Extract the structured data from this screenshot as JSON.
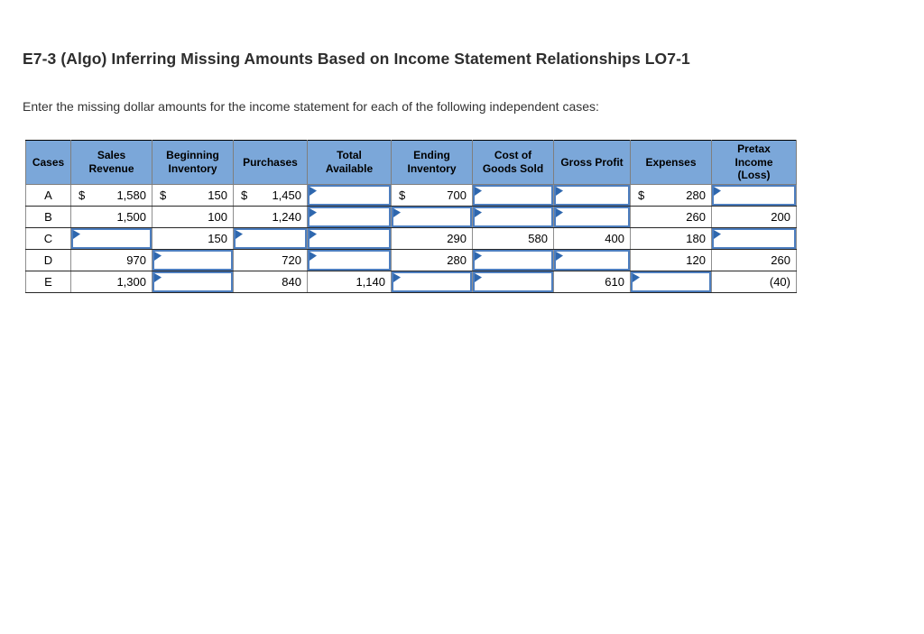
{
  "page": {
    "title": "E7-3 (Algo) Inferring Missing Amounts Based on Income Statement Relationships LO7-1",
    "instruction": "Enter the missing dollar amounts for the income statement for each of the following independent cases:"
  },
  "colors": {
    "header_bg": "#7BA7D9",
    "input_border": "#4D7EBF",
    "flag": "#2E67AE"
  },
  "table": {
    "columns": [
      {
        "key": "cases",
        "label": "Cases"
      },
      {
        "key": "sales-revenue",
        "label": "Sales Revenue"
      },
      {
        "key": "beginning-inventory",
        "label": "Beginning Inventory"
      },
      {
        "key": "purchases",
        "label": "Purchases"
      },
      {
        "key": "total-available",
        "label": "Total Available"
      },
      {
        "key": "ending-inventory",
        "label": "Ending Inventory"
      },
      {
        "key": "cost-of-goods-sold",
        "label": "Cost of Goods Sold"
      },
      {
        "key": "gross-profit",
        "label": "Gross Profit"
      },
      {
        "key": "expenses",
        "label": "Expenses"
      },
      {
        "key": "pretax-income-loss",
        "label": "Pretax Income (Loss)"
      }
    ],
    "rows": [
      {
        "case": "A",
        "cells": [
          {
            "type": "static",
            "prefix": "$",
            "value": "1,580"
          },
          {
            "type": "static",
            "prefix": "$",
            "value": "150"
          },
          {
            "type": "static",
            "prefix": "$",
            "value": "1,450"
          },
          {
            "type": "input",
            "value": ""
          },
          {
            "type": "static",
            "prefix": "$",
            "value": "700"
          },
          {
            "type": "input",
            "value": ""
          },
          {
            "type": "input",
            "value": ""
          },
          {
            "type": "static",
            "prefix": "$",
            "value": "280"
          },
          {
            "type": "input",
            "value": ""
          }
        ]
      },
      {
        "case": "B",
        "cells": [
          {
            "type": "static",
            "prefix": "",
            "value": "1,500"
          },
          {
            "type": "static",
            "prefix": "",
            "value": "100"
          },
          {
            "type": "static",
            "prefix": "",
            "value": "1,240"
          },
          {
            "type": "input",
            "value": ""
          },
          {
            "type": "input",
            "value": ""
          },
          {
            "type": "input",
            "value": ""
          },
          {
            "type": "input",
            "value": ""
          },
          {
            "type": "static",
            "prefix": "",
            "value": "260"
          },
          {
            "type": "static",
            "prefix": "",
            "value": "200"
          }
        ]
      },
      {
        "case": "C",
        "cells": [
          {
            "type": "input",
            "value": ""
          },
          {
            "type": "static",
            "prefix": "",
            "value": "150"
          },
          {
            "type": "input",
            "value": ""
          },
          {
            "type": "input",
            "value": ""
          },
          {
            "type": "static",
            "prefix": "",
            "value": "290"
          },
          {
            "type": "static",
            "prefix": "",
            "value": "580"
          },
          {
            "type": "static",
            "prefix": "",
            "value": "400"
          },
          {
            "type": "static",
            "prefix": "",
            "value": "180"
          },
          {
            "type": "input",
            "value": ""
          }
        ]
      },
      {
        "case": "D",
        "cells": [
          {
            "type": "static",
            "prefix": "",
            "value": "970"
          },
          {
            "type": "input",
            "value": ""
          },
          {
            "type": "static",
            "prefix": "",
            "value": "720"
          },
          {
            "type": "input",
            "value": ""
          },
          {
            "type": "static",
            "prefix": "",
            "value": "280"
          },
          {
            "type": "input",
            "value": ""
          },
          {
            "type": "input",
            "value": ""
          },
          {
            "type": "static",
            "prefix": "",
            "value": "120"
          },
          {
            "type": "static",
            "prefix": "",
            "value": "260"
          }
        ]
      },
      {
        "case": "E",
        "cells": [
          {
            "type": "static",
            "prefix": "",
            "value": "1,300"
          },
          {
            "type": "input",
            "value": ""
          },
          {
            "type": "static",
            "prefix": "",
            "value": "840"
          },
          {
            "type": "static",
            "prefix": "",
            "value": "1,140"
          },
          {
            "type": "input",
            "value": ""
          },
          {
            "type": "input",
            "value": ""
          },
          {
            "type": "static",
            "prefix": "",
            "value": "610"
          },
          {
            "type": "input",
            "value": ""
          },
          {
            "type": "static",
            "prefix": "",
            "value": "(40)"
          }
        ]
      }
    ]
  }
}
